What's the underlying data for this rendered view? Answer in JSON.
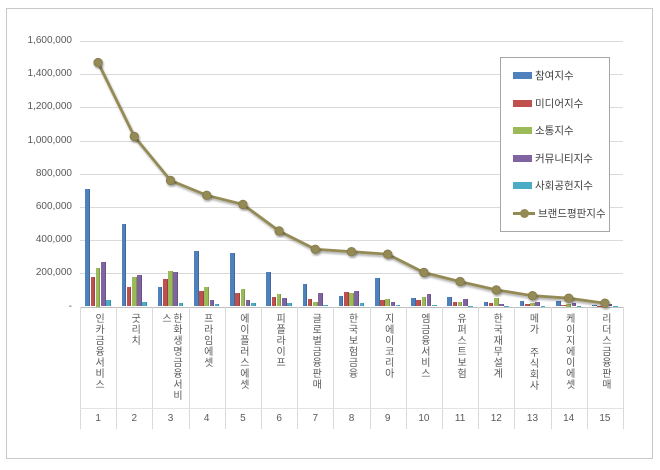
{
  "chart_data": {
    "type": "bar+line combo",
    "title": "",
    "categories": [
      "인카금융서비스",
      "굿리치",
      "한화생명금융서비스",
      "프라임에셋",
      "에이플러스에셋",
      "피플라이프",
      "글로벌금융판매",
      "한국보험금융",
      "지에이코리아",
      "엠금융서비스",
      "유퍼스트보험",
      "한국재무설계",
      "메가 주식회사",
      "케이지에이에셋",
      "리더스금융판매"
    ],
    "ranks": [
      "1",
      "2",
      "3",
      "4",
      "5",
      "6",
      "7",
      "8",
      "9",
      "10",
      "11",
      "12",
      "13",
      "14",
      "15"
    ],
    "series": [
      {
        "key": "participation",
        "name": "참여지수",
        "type": "bar",
        "color": "#4F81BD",
        "values": [
          710000,
          500000,
          120000,
          335000,
          325000,
          210000,
          135000,
          65000,
          170000,
          50000,
          55000,
          30000,
          32000,
          34000,
          12000
        ]
      },
      {
        "key": "media",
        "name": "미디어지수",
        "type": "bar",
        "color": "#C0504D",
        "values": [
          175000,
          120000,
          165000,
          95000,
          80000,
          60000,
          45000,
          85000,
          40000,
          40000,
          25000,
          20000,
          15000,
          10000,
          5000
        ]
      },
      {
        "key": "communication",
        "name": "소통지수",
        "type": "bar",
        "color": "#9BBB59",
        "values": [
          235000,
          180000,
          215000,
          120000,
          105000,
          75000,
          25000,
          80000,
          45000,
          60000,
          30000,
          50000,
          20000,
          16000,
          16000
        ]
      },
      {
        "key": "community",
        "name": "커뮤니티지수",
        "type": "bar",
        "color": "#8064A2",
        "values": [
          270000,
          190000,
          205000,
          40000,
          40000,
          50000,
          80000,
          95000,
          25000,
          75000,
          45000,
          18000,
          26000,
          20000,
          14000
        ]
      },
      {
        "key": "social",
        "name": "사회공헌지수",
        "type": "bar",
        "color": "#4BACC6",
        "values": [
          40000,
          25000,
          20000,
          15000,
          20000,
          20000,
          10000,
          20000,
          10000,
          12000,
          5000,
          5000,
          4000,
          3000,
          2000
        ]
      },
      {
        "key": "brand",
        "name": "브랜드평판지수",
        "type": "line",
        "color": "#948A54",
        "values": [
          1470000,
          1025000,
          760000,
          670000,
          615000,
          455000,
          345000,
          330000,
          315000,
          205000,
          150000,
          100000,
          65000,
          50000,
          20000
        ]
      }
    ],
    "y_axis": {
      "min": 0,
      "max": 1600000,
      "tick_interval": 200000,
      "tick_labels_top_down": [
        "1,600,000",
        "1,400,000",
        "1,200,000",
        "1,000,000",
        "800,000",
        "600,000",
        "400,000",
        "200,000",
        "-"
      ]
    },
    "legend_position": "right-top",
    "grid": true
  }
}
